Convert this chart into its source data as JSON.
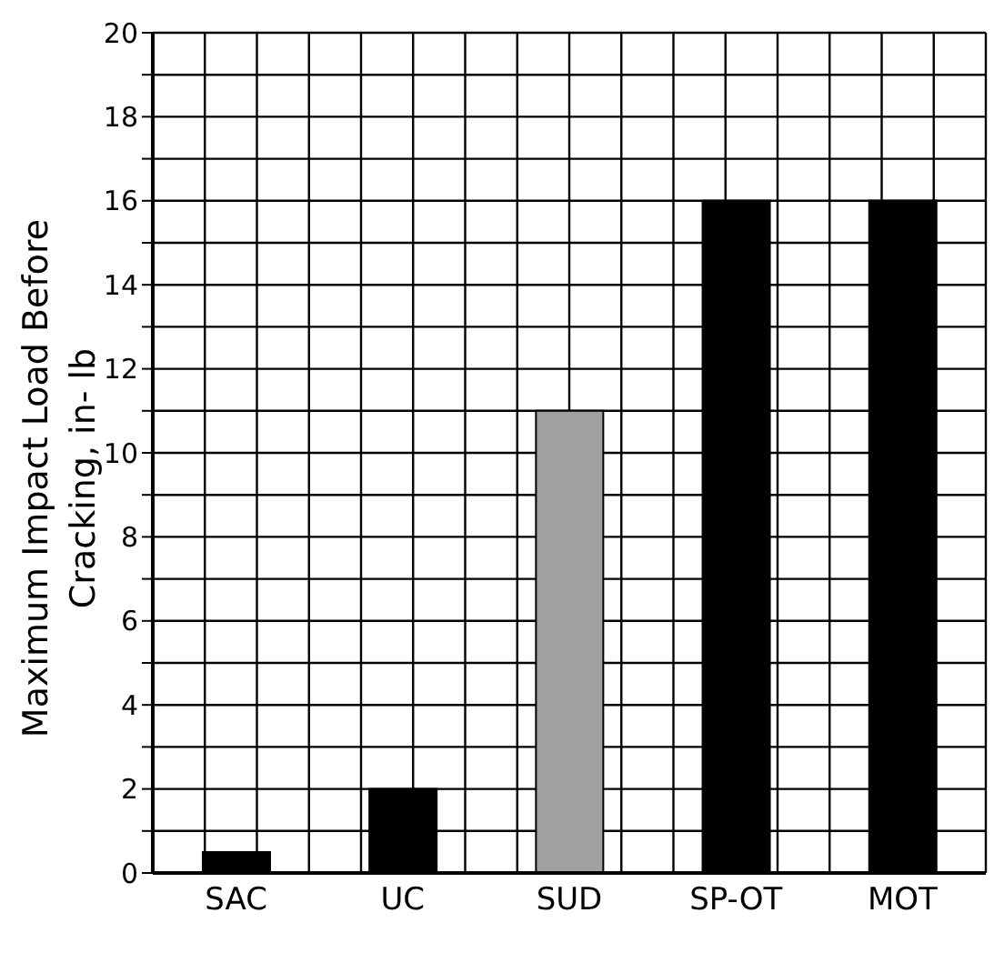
{
  "chart_data": {
    "type": "bar",
    "ylabel": "Maximum Impact Load Before\nCracking, in- lb",
    "categories": [
      "SAC",
      "UC",
      "SUD",
      "SP-OT",
      "MOT"
    ],
    "values": [
      0.5,
      2,
      11,
      16,
      16
    ],
    "colors": [
      "#000000",
      "#000000",
      "#a0a0a0",
      "#000000",
      "#000000"
    ],
    "ylim": [
      0,
      20
    ],
    "yticks": [
      0,
      {
        "value": 1,
        "label": null
      },
      2,
      {
        "value": 3,
        "label": null
      },
      4,
      {
        "value": 5,
        "label": null
      },
      6,
      {
        "value": 7,
        "label": null
      },
      8,
      {
        "value": 9,
        "label": null
      },
      10,
      {
        "value": 11,
        "label": null
      },
      12,
      {
        "value": 13,
        "label": null
      },
      14,
      {
        "value": 15,
        "label": null
      },
      16,
      {
        "value": 17,
        "label": null
      },
      18,
      {
        "value": 19,
        "label": null
      },
      20
    ],
    "grid": true
  }
}
